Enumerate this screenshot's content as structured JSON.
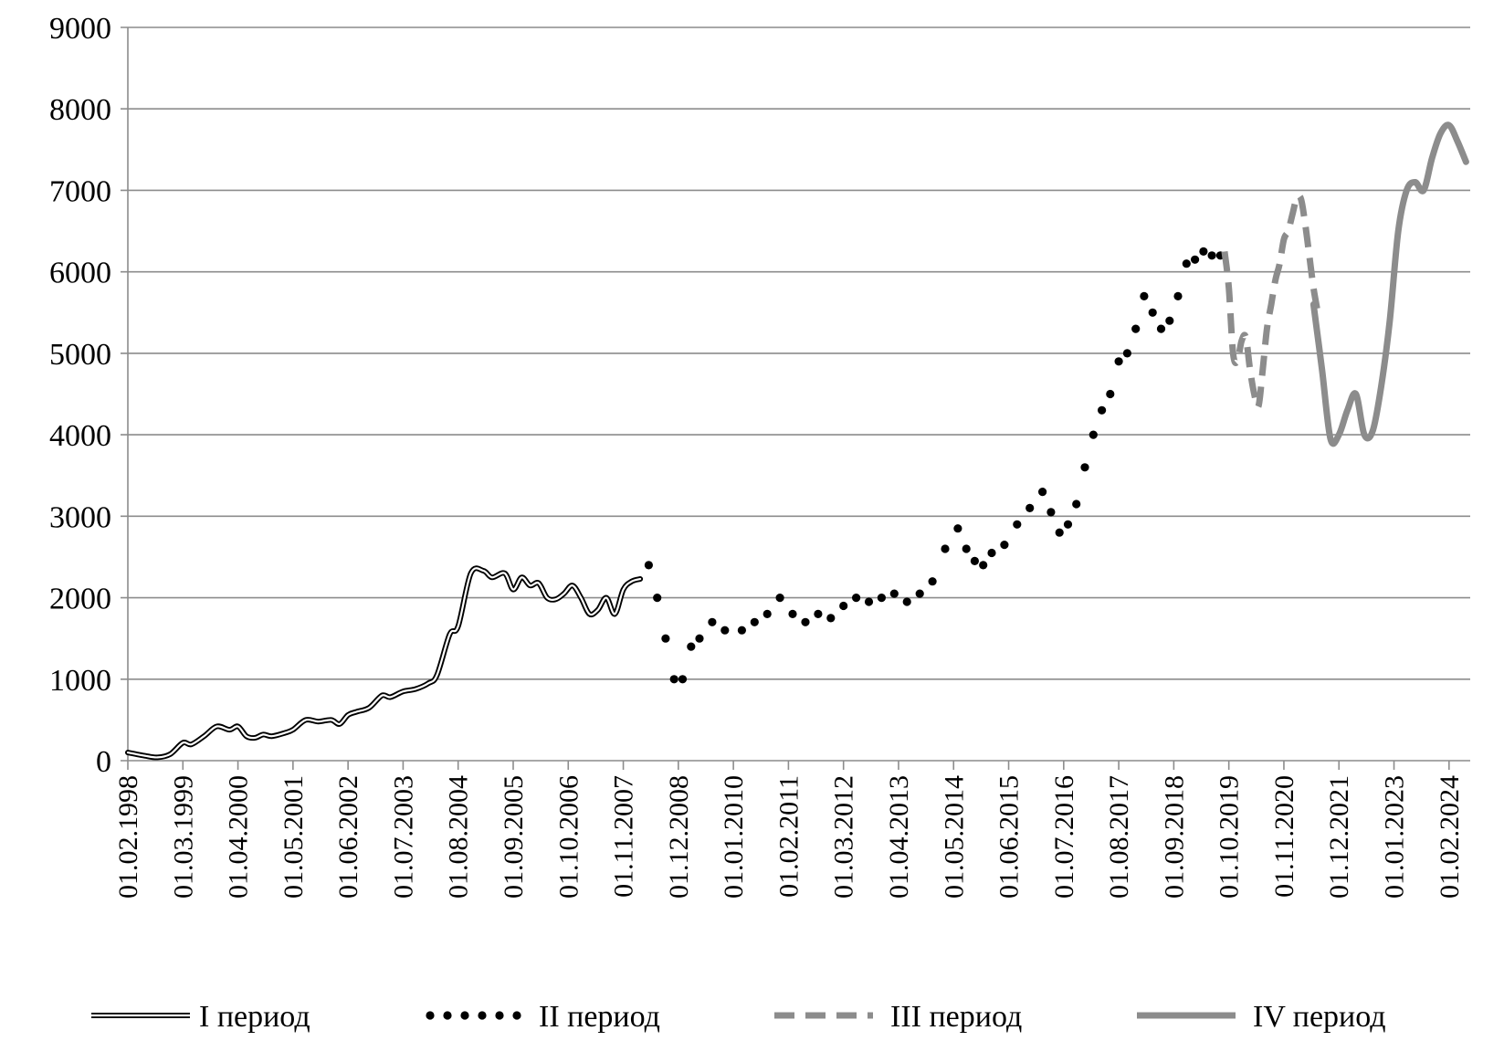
{
  "chart_data": {
    "type": "line",
    "title": "",
    "xlabel": "",
    "ylabel": "",
    "ylim": [
      0,
      9000
    ],
    "yticks": [
      0,
      1000,
      2000,
      3000,
      4000,
      5000,
      6000,
      7000,
      8000,
      9000
    ],
    "grid": true,
    "legend_position": "bottom",
    "x_tick_labels": [
      "01.02.1998",
      "01.03.1999",
      "01.04.2000",
      "01.05.2001",
      "01.06.2002",
      "01.07.2003",
      "01.08.2004",
      "01.09.2005",
      "01.10.2006",
      "01.11.2007",
      "01.12.2008",
      "01.01.2010",
      "01.02.2011",
      "01.03.2012",
      "01.04.2013",
      "01.05.2014",
      "01.06.2015",
      "01.07.2016",
      "01.08.2017",
      "01.09.2018",
      "01.10.2019",
      "01.11.2020",
      "01.12.2021",
      "01.01.2023",
      "01.02.2024"
    ],
    "series": [
      {
        "name": "I период",
        "style": "double",
        "color": "#000000",
        "x": [
          "1998-02",
          "1998-06",
          "1998-09",
          "1998-12",
          "1999-03",
          "1999-05",
          "1999-08",
          "1999-11",
          "2000-02",
          "2000-04",
          "2000-06",
          "2000-08",
          "2000-10",
          "2000-12",
          "2001-03",
          "2001-05",
          "2001-08",
          "2001-11",
          "2002-02",
          "2002-04",
          "2002-06",
          "2002-08",
          "2002-11",
          "2003-02",
          "2003-04",
          "2003-07",
          "2003-10",
          "2004-01",
          "2004-03",
          "2004-06",
          "2004-08",
          "2004-11",
          "2005-02",
          "2005-04",
          "2005-07",
          "2005-09",
          "2005-11",
          "2006-01",
          "2006-03",
          "2006-05",
          "2006-07",
          "2006-09",
          "2006-11",
          "2007-01",
          "2007-03",
          "2007-05",
          "2007-07",
          "2007-09",
          "2007-11",
          "2008-01",
          "2008-03"
        ],
        "y": [
          100,
          60,
          40,
          80,
          220,
          200,
          300,
          420,
          380,
          420,
          300,
          280,
          320,
          300,
          340,
          380,
          500,
          480,
          500,
          450,
          560,
          600,
          650,
          800,
          780,
          850,
          880,
          950,
          1050,
          1550,
          1650,
          2300,
          2330,
          2250,
          2300,
          2100,
          2250,
          2150,
          2180,
          2000,
          1980,
          2050,
          2150,
          2000,
          1800,
          1850,
          2000,
          1800,
          2100,
          2200,
          2230
        ]
      },
      {
        "name": "II период",
        "style": "dotted",
        "color": "#000000",
        "x": [
          "2008-05",
          "2008-07",
          "2008-09",
          "2008-11",
          "2009-01",
          "2009-03",
          "2009-05",
          "2009-08",
          "2009-11",
          "2010-03",
          "2010-06",
          "2010-09",
          "2010-12",
          "2011-03",
          "2011-06",
          "2011-09",
          "2011-12",
          "2012-03",
          "2012-06",
          "2012-09",
          "2012-12",
          "2013-03",
          "2013-06",
          "2013-09",
          "2013-12",
          "2014-03",
          "2014-06",
          "2014-08",
          "2014-10",
          "2014-12",
          "2015-02",
          "2015-05",
          "2015-08",
          "2015-11",
          "2016-02",
          "2016-04",
          "2016-06",
          "2016-08",
          "2016-10",
          "2016-12",
          "2017-02",
          "2017-04",
          "2017-06",
          "2017-08",
          "2017-10",
          "2017-12",
          "2018-02",
          "2018-04",
          "2018-06",
          "2018-08",
          "2018-10",
          "2018-12",
          "2019-02",
          "2019-04",
          "2019-06",
          "2019-08"
        ],
        "y": [
          2400,
          2000,
          1500,
          1000,
          1000,
          1400,
          1500,
          1700,
          1600,
          1600,
          1700,
          1800,
          2000,
          1800,
          1700,
          1800,
          1750,
          1900,
          2000,
          1950,
          2000,
          2050,
          1950,
          2050,
          2200,
          2600,
          2850,
          2600,
          2450,
          2400,
          2550,
          2650,
          2900,
          3100,
          3300,
          3050,
          2800,
          2900,
          3150,
          3600,
          4000,
          4300,
          4500,
          4900,
          5000,
          5300,
          5700,
          5500,
          5300,
          5400,
          5700,
          6100,
          6150,
          6250,
          6200,
          6200
        ]
      },
      {
        "name": "III период",
        "style": "dashed",
        "color": "#8c8c8c",
        "x": [
          "2019-09",
          "2019-10",
          "2019-11",
          "2019-12",
          "2020-01",
          "2020-02",
          "2020-03",
          "2020-04",
          "2020-05",
          "2020-06",
          "2020-07",
          "2020-08",
          "2020-09",
          "2020-10",
          "2020-11",
          "2020-12",
          "2021-01",
          "2021-02",
          "2021-03",
          "2021-04",
          "2021-05",
          "2021-06",
          "2021-07"
        ],
        "y": [
          6250,
          5800,
          5000,
          4900,
          5150,
          5200,
          4800,
          4500,
          4350,
          4800,
          5300,
          5600,
          5900,
          6100,
          6400,
          6500,
          6700,
          6900,
          6900,
          6600,
          6200,
          5800,
          5500
        ]
      },
      {
        "name": "IV период",
        "style": "solid",
        "color": "#8c8c8c",
        "x": [
          "2021-06",
          "2021-08",
          "2021-10",
          "2021-12",
          "2022-02",
          "2022-04",
          "2022-06",
          "2022-08",
          "2022-10",
          "2022-12",
          "2023-02",
          "2023-04",
          "2023-06",
          "2023-08",
          "2023-10",
          "2023-12",
          "2024-02",
          "2024-04",
          "2024-06"
        ],
        "y": [
          5600,
          4800,
          3950,
          4000,
          4300,
          4500,
          4000,
          4050,
          4600,
          5400,
          6500,
          7000,
          7100,
          7000,
          7400,
          7700,
          7800,
          7600,
          7350
        ]
      }
    ]
  }
}
